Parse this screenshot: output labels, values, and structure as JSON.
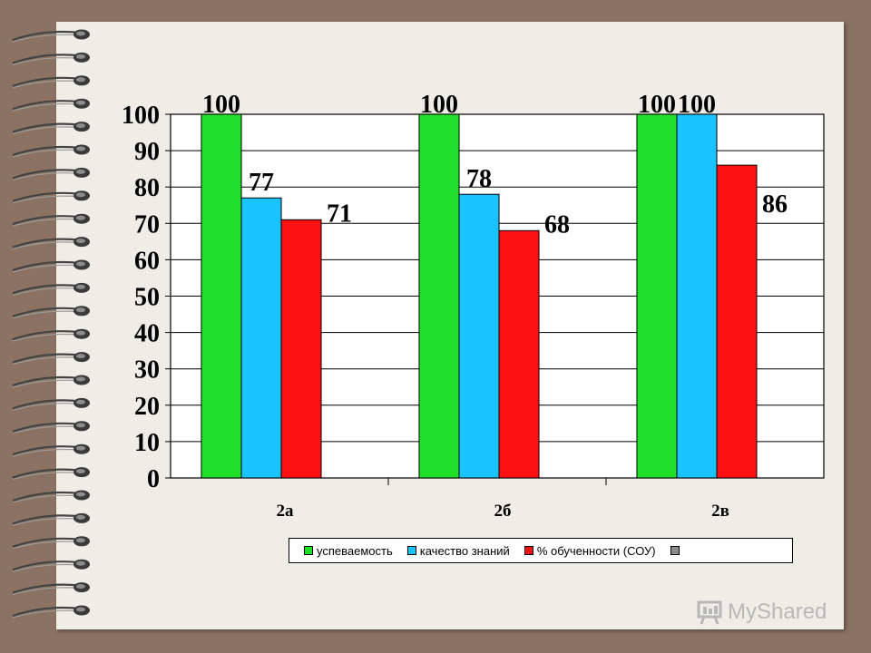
{
  "chart_data": {
    "type": "bar",
    "categories": [
      "2а",
      "2б",
      "2в"
    ],
    "series": [
      {
        "name": "успеваемость",
        "values": [
          100,
          100,
          100
        ],
        "color": "#22e02a"
      },
      {
        "name": "качество знаний",
        "values": [
          77,
          78,
          100
        ],
        "color": "#18c3ff"
      },
      {
        "name": "% обученности (СОУ)",
        "values": [
          71,
          68,
          86
        ],
        "color": "#ff1010"
      }
    ],
    "extra_legend_entry": {
      "name": "",
      "color": "#8a8a8a"
    },
    "yticks": [
      "0",
      "10",
      "20",
      "30",
      "40",
      "50",
      "60",
      "70",
      "80",
      "90",
      "100"
    ],
    "ylim": [
      0,
      100
    ],
    "grid": true,
    "legend_position": "bottom",
    "data_labels": [
      [
        "100",
        "77",
        "71"
      ],
      [
        "100",
        "78",
        "68"
      ],
      [
        "100",
        "100",
        "86"
      ]
    ]
  },
  "watermark": {
    "text": "MyShared",
    "icon": "presentation-board-icon"
  }
}
